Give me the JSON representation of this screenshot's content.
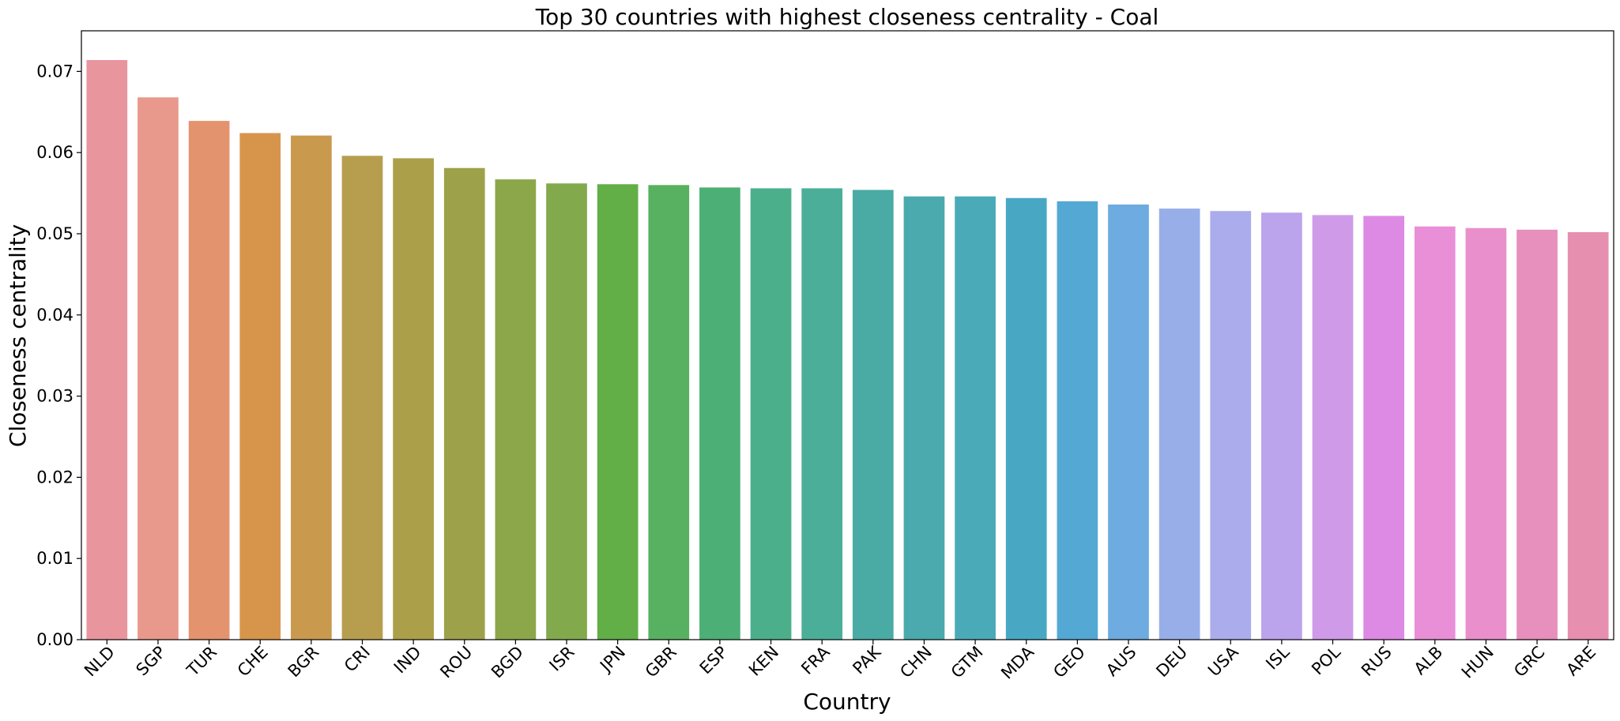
{
  "chart_data": {
    "type": "bar",
    "title": "Top 30 countries with highest closeness centrality - Coal",
    "xlabel": "Country",
    "ylabel": "Closeness centrality",
    "ylim": [
      0,
      0.075
    ],
    "yticks": [
      "0.00",
      "0.01",
      "0.02",
      "0.03",
      "0.04",
      "0.05",
      "0.06",
      "0.07"
    ],
    "grid": false,
    "categories": [
      "NLD",
      "SGP",
      "TUR",
      "CHE",
      "BGR",
      "CRI",
      "IND",
      "ROU",
      "BGD",
      "ISR",
      "JPN",
      "GBR",
      "ESP",
      "KEN",
      "FRA",
      "PAK",
      "CHN",
      "GTM",
      "MDA",
      "GEO",
      "AUS",
      "DEU",
      "USA",
      "ISL",
      "POL",
      "RUS",
      "ALB",
      "HUN",
      "GRC",
      "ARE"
    ],
    "values": [
      0.0714,
      0.0668,
      0.0639,
      0.0624,
      0.0621,
      0.0596,
      0.0593,
      0.0581,
      0.0567,
      0.0562,
      0.0561,
      0.056,
      0.0557,
      0.0556,
      0.0556,
      0.0554,
      0.0546,
      0.0546,
      0.0544,
      0.054,
      0.0536,
      0.0531,
      0.0528,
      0.0526,
      0.0523,
      0.0522,
      0.0509,
      0.0507,
      0.0505,
      0.0502
    ],
    "colors": [
      "#e9959e",
      "#e8998b",
      "#e4936f",
      "#d7954c",
      "#c99a4e",
      "#b79d4e",
      "#ab9f49",
      "#9da24a",
      "#8ca74a",
      "#82aa4d",
      "#62ae47",
      "#58b160",
      "#4caf76",
      "#4caf8c",
      "#4bae98",
      "#4aaaa4",
      "#4aaaad",
      "#4aaab8",
      "#48a8c4",
      "#53a8d4",
      "#6dabe0",
      "#97aee8",
      "#aaaceb",
      "#bca4ec",
      "#cf9be8",
      "#dd8ae4",
      "#e98fd8",
      "#e990cc",
      "#e78fbd",
      "#e78fae"
    ]
  }
}
